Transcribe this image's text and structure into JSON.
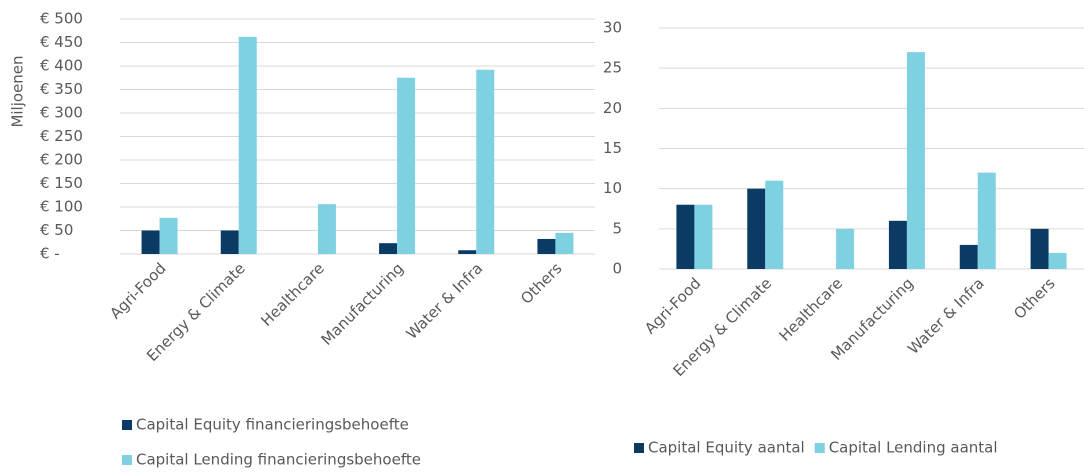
{
  "chart_data": [
    {
      "type": "bar",
      "ylabel": "Miljoenen",
      "categories": [
        "Agri-Food",
        "Energy & Climate",
        "Healthcare",
        "Manufacturing",
        "Water & Infra",
        "Others"
      ],
      "series": [
        {
          "name": "Capital Equity financieringsbehoefte",
          "color": "#0b3a64",
          "values": [
            50,
            50,
            0,
            23,
            8,
            32
          ]
        },
        {
          "name": "Capital Lending financieringsbehoefte",
          "color": "#7fd0e0",
          "values": [
            77,
            462,
            106,
            375,
            392,
            45
          ]
        }
      ],
      "ylim": [
        0,
        500
      ],
      "yticks": [
        {
          "value": 0,
          "label": "€ -"
        },
        {
          "value": 50,
          "label": "€ 50"
        },
        {
          "value": 100,
          "label": "€ 100"
        },
        {
          "value": 150,
          "label": "€ 150"
        },
        {
          "value": 200,
          "label": "€ 200"
        },
        {
          "value": 250,
          "label": "€ 250"
        },
        {
          "value": 300,
          "label": "€ 300"
        },
        {
          "value": 350,
          "label": "€ 350"
        },
        {
          "value": 400,
          "label": "€ 400"
        },
        {
          "value": 450,
          "label": "€ 450"
        },
        {
          "value": 500,
          "label": "€ 500"
        }
      ],
      "grid": true,
      "legend": "bottom"
    },
    {
      "type": "bar",
      "categories": [
        "Agri-Food",
        "Energy & Climate",
        "Healthcare",
        "Manufacturing",
        "Water & Infra",
        "Others"
      ],
      "series": [
        {
          "name": "Capital Equity aantal",
          "color": "#0b3a64",
          "values": [
            8,
            10,
            0,
            6,
            3,
            5
          ]
        },
        {
          "name": "Capital Lending aantal",
          "color": "#7fd0e0",
          "values": [
            8,
            11,
            5,
            27,
            12,
            2
          ]
        }
      ],
      "ylim": [
        0,
        30
      ],
      "yticks": [
        0,
        5,
        10,
        15,
        20,
        25,
        30
      ],
      "grid": true,
      "legend": "bottom"
    }
  ]
}
